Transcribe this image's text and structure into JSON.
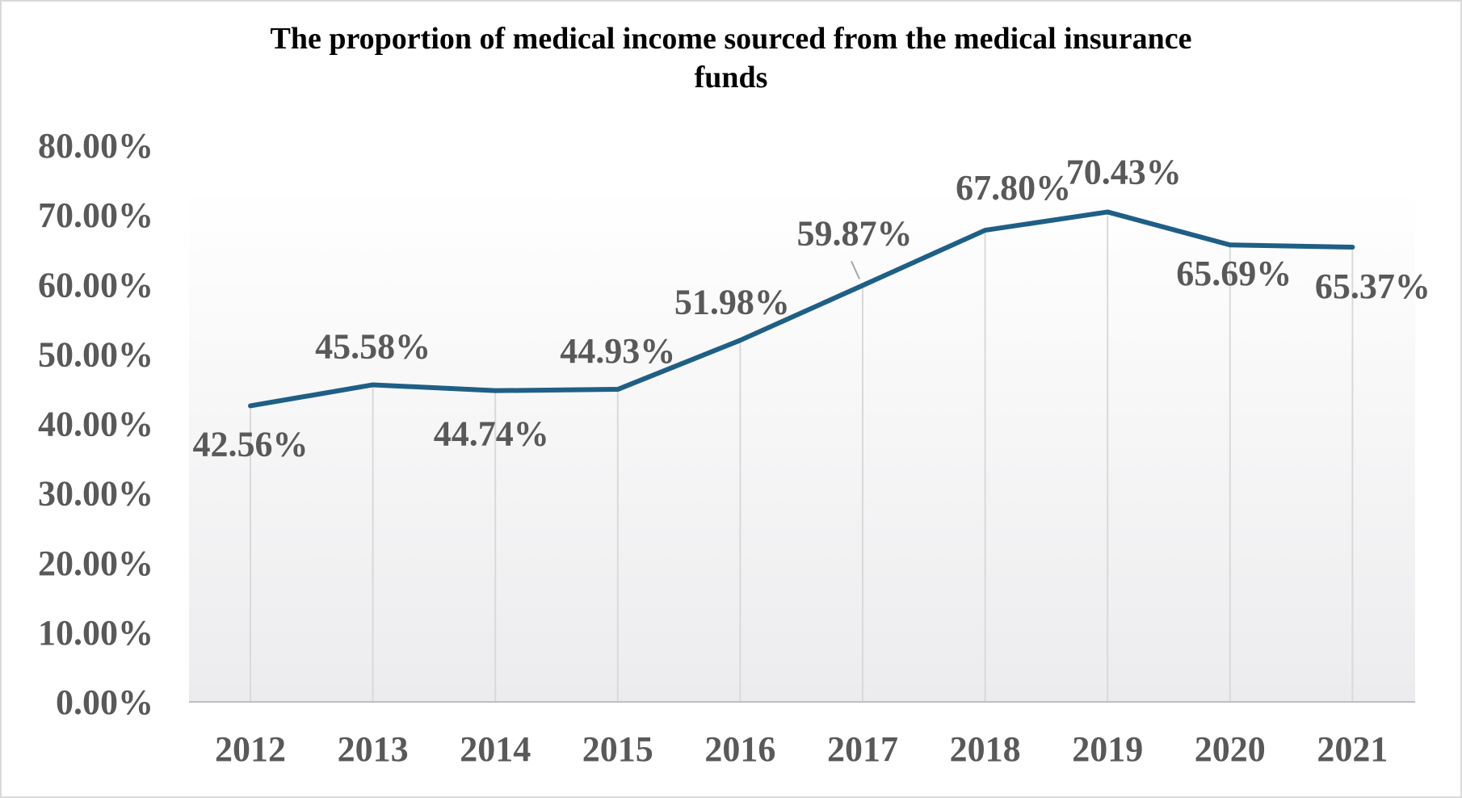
{
  "chart_data": {
    "type": "line",
    "title_lines": [
      "The proportion of medical income sourced from the medical insurance",
      "funds"
    ],
    "xlabel": "",
    "ylabel": "",
    "categories": [
      "2012",
      "2013",
      "2014",
      "2015",
      "2016",
      "2017",
      "2018",
      "2019",
      "2020",
      "2021"
    ],
    "series": [
      {
        "values": [
          42.56,
          45.58,
          44.74,
          44.93,
          51.98,
          59.87,
          67.8,
          70.43,
          65.69,
          65.37
        ],
        "color": "#1f5f86"
      }
    ],
    "data_labels": [
      "42.56%",
      "45.58%",
      "44.74%",
      "44.93%",
      "51.98%",
      "59.87%",
      "67.80%",
      "70.43%",
      "65.69%",
      "65.37%"
    ],
    "yticks": [
      "0.00%",
      "10.00%",
      "20.00%",
      "30.00%",
      "40.00%",
      "50.00%",
      "60.00%",
      "70.00%",
      "80.00%"
    ],
    "ylim": [
      0,
      80
    ],
    "grid": "vertical drop lines",
    "legend": "none"
  }
}
